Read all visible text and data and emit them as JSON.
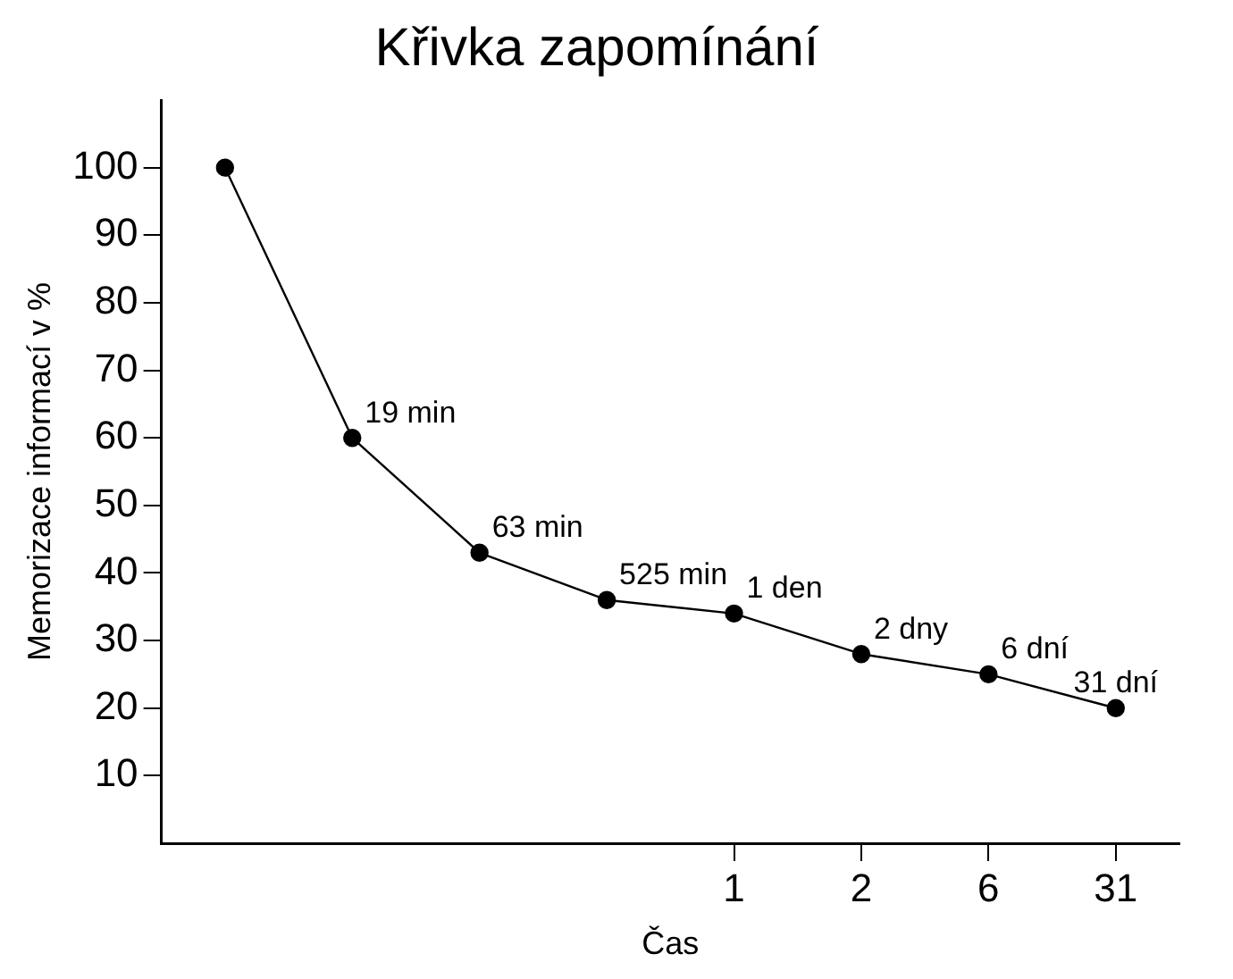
{
  "chart_data": {
    "type": "line",
    "title": "Křivka zapomínání",
    "xlabel": "Čas",
    "ylabel": "Memorizace informací v %",
    "categories": [
      null,
      null,
      null,
      null,
      "1",
      "2",
      "6",
      "31"
    ],
    "values": [
      100,
      60,
      43,
      36,
      34,
      28,
      25,
      20
    ],
    "annotations": [
      "19 min",
      "63 min",
      "525 min",
      {
        "text": "1 den",
        "x": "1",
        "y": 34
      },
      {
        "text": "2 dny",
        "x": "2",
        "y": 28
      },
      {
        "text": "6 dní",
        "x": "6",
        "y": 25
      },
      {
        "text": "31 dní",
        "x": "31",
        "y": 20
      }
    ],
    "color": "#000000",
    "marker": "circle",
    "line_style": "solid",
    "ylim": [
      0,
      110
    ],
    "yticks": [
      10,
      20,
      30,
      40,
      50,
      60,
      70,
      80,
      90,
      100
    ],
    "grid": false,
    "legend": false
  }
}
